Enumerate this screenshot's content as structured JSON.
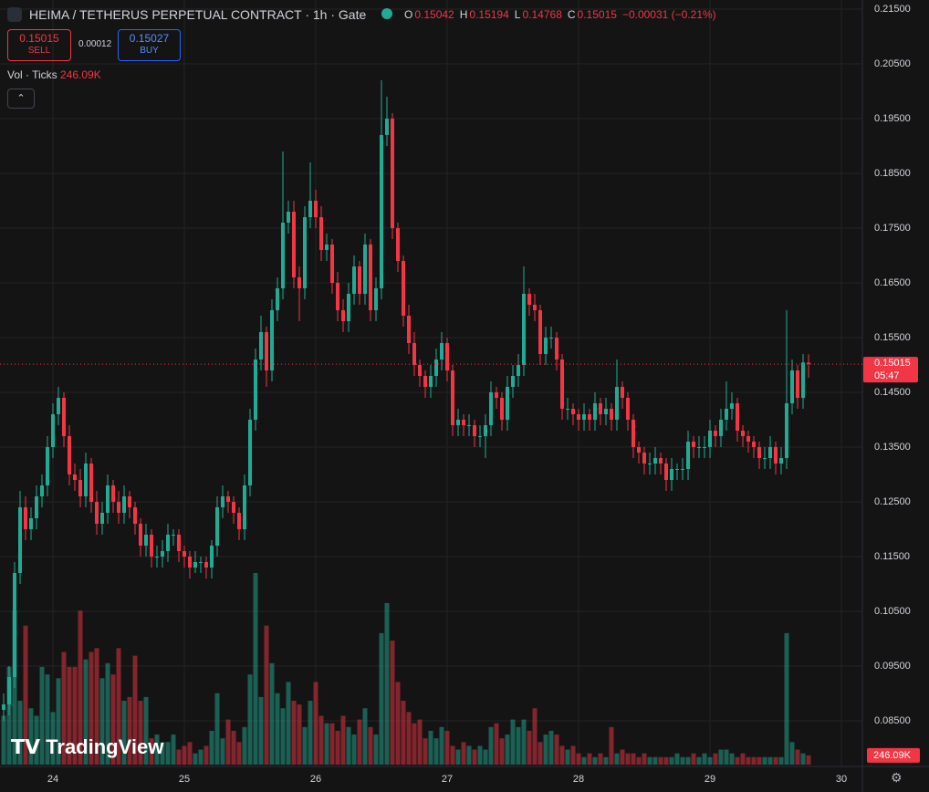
{
  "chart_data": {
    "type": "candlestick",
    "title": "HEIMA / TETHERUS PERPETUAL CONTRACT · 1h · Gate",
    "ohlc_labels": [
      "O",
      "H",
      "L",
      "C"
    ],
    "change_label": "−0.00031 (−0.21%)",
    "trade": {
      "sell_price": "0.15015",
      "sell_label": "SELL",
      "spread": "0.00012",
      "buy_price": "0.15027",
      "buy_label": "BUY"
    },
    "volume_title": "Vol · Ticks",
    "volume_label": "246.09K",
    "countdown": "05:47",
    "watermark": "TradingView",
    "up_color": "#22ab94",
    "down_color": "#f23645",
    "ylim": [
      0.07533,
      0.21667
    ],
    "yticks": [
      {
        "value": 0.215,
        "label": "0.21500"
      },
      {
        "value": 0.205,
        "label": "0.20500"
      },
      {
        "value": 0.195,
        "label": "0.19500"
      },
      {
        "value": 0.185,
        "label": "0.18500"
      },
      {
        "value": 0.175,
        "label": "0.17500"
      },
      {
        "value": 0.165,
        "label": "0.16500"
      },
      {
        "value": 0.155,
        "label": "0.15500"
      },
      {
        "value": 0.145,
        "label": "0.14500"
      },
      {
        "value": 0.135,
        "label": "0.13500"
      },
      {
        "value": 0.125,
        "label": "0.12500"
      },
      {
        "value": 0.115,
        "label": "0.11500"
      },
      {
        "value": 0.105,
        "label": "0.10500"
      },
      {
        "value": 0.095,
        "label": "0.09500"
      },
      {
        "value": 0.085,
        "label": "0.08500"
      }
    ],
    "xticks": [
      {
        "value": 9,
        "label": "24"
      },
      {
        "value": 33,
        "label": "25"
      },
      {
        "value": 57,
        "label": "26"
      },
      {
        "value": 81,
        "label": "27"
      },
      {
        "value": 105,
        "label": "28"
      },
      {
        "value": 129,
        "label": "29"
      },
      {
        "value": 153,
        "label": "30"
      }
    ],
    "grid": true,
    "open": [
      0.087,
      0.088,
      0.093,
      0.112,
      0.124,
      0.12,
      0.122,
      0.126,
      0.128,
      0.135,
      0.141,
      0.144,
      0.137,
      0.13,
      0.129,
      0.126,
      0.132,
      0.125,
      0.121,
      0.123,
      0.128,
      0.125,
      0.123,
      0.126,
      0.124,
      0.121,
      0.117,
      0.119,
      0.115,
      0.115,
      0.116,
      0.119,
      0.119,
      0.116,
      0.115,
      0.113,
      0.114,
      0.114,
      0.113,
      0.117,
      0.124,
      0.126,
      0.125,
      0.123,
      0.12,
      0.128,
      0.14,
      0.151,
      0.156,
      0.149,
      0.16,
      0.164,
      0.176,
      0.178,
      0.166,
      0.164,
      0.177,
      0.18,
      0.177,
      0.171,
      0.172,
      0.165,
      0.16,
      0.158,
      0.163,
      0.168,
      0.163,
      0.172,
      0.16,
      0.164,
      0.192,
      0.195,
      0.175,
      0.169,
      0.159,
      0.154,
      0.15,
      0.148,
      0.146,
      0.148,
      0.151,
      0.154,
      0.149,
      0.139,
      0.14,
      0.139,
      0.139,
      0.137,
      0.137,
      0.139,
      0.145,
      0.144,
      0.14,
      0.146,
      0.148,
      0.15,
      0.163,
      0.161,
      0.16,
      0.152,
      0.155,
      0.155,
      0.151,
      0.142,
      0.142,
      0.141,
      0.14,
      0.141,
      0.14,
      0.143,
      0.141,
      0.142,
      0.14,
      0.146,
      0.144,
      0.14,
      0.135,
      0.134,
      0.132,
      0.132,
      0.133,
      0.132,
      0.129,
      0.131,
      0.131,
      0.131,
      0.136,
      0.135,
      0.135,
      0.135,
      0.138,
      0.137,
      0.14,
      0.142,
      0.143,
      0.138,
      0.137,
      0.136,
      0.135,
      0.133,
      0.133,
      0.135,
      0.132,
      0.133,
      0.143,
      0.149,
      0.144,
      0.15042
    ],
    "high": [
      0.09,
      0.095,
      0.114,
      0.127,
      0.126,
      0.124,
      0.128,
      0.13,
      0.137,
      0.143,
      0.146,
      0.145,
      0.139,
      0.132,
      0.131,
      0.134,
      0.133,
      0.127,
      0.125,
      0.13,
      0.129,
      0.127,
      0.128,
      0.127,
      0.125,
      0.122,
      0.121,
      0.12,
      0.117,
      0.118,
      0.121,
      0.12,
      0.12,
      0.117,
      0.116,
      0.116,
      0.115,
      0.115,
      0.118,
      0.126,
      0.128,
      0.127,
      0.126,
      0.124,
      0.13,
      0.142,
      0.153,
      0.159,
      0.157,
      0.162,
      0.166,
      0.189,
      0.18,
      0.18,
      0.168,
      0.179,
      0.187,
      0.182,
      0.179,
      0.174,
      0.173,
      0.167,
      0.162,
      0.165,
      0.17,
      0.169,
      0.174,
      0.173,
      0.166,
      0.202,
      0.199,
      0.196,
      0.176,
      0.17,
      0.161,
      0.156,
      0.151,
      0.149,
      0.15,
      0.153,
      0.156,
      0.155,
      0.15,
      0.142,
      0.141,
      0.141,
      0.14,
      0.139,
      0.141,
      0.147,
      0.146,
      0.145,
      0.148,
      0.15,
      0.152,
      0.168,
      0.164,
      0.163,
      0.161,
      0.157,
      0.157,
      0.156,
      0.152,
      0.144,
      0.143,
      0.142,
      0.143,
      0.142,
      0.145,
      0.144,
      0.144,
      0.143,
      0.151,
      0.147,
      0.145,
      0.141,
      0.136,
      0.135,
      0.134,
      0.135,
      0.134,
      0.133,
      0.133,
      0.132,
      0.133,
      0.138,
      0.137,
      0.137,
      0.137,
      0.14,
      0.139,
      0.142,
      0.147,
      0.145,
      0.144,
      0.139,
      0.138,
      0.137,
      0.136,
      0.135,
      0.137,
      0.136,
      0.135,
      0.16,
      0.151,
      0.15,
      0.152,
      0.15194
    ],
    "low": [
      0.085,
      0.086,
      0.091,
      0.11,
      0.118,
      0.118,
      0.12,
      0.124,
      0.126,
      0.133,
      0.139,
      0.135,
      0.128,
      0.127,
      0.124,
      0.124,
      0.123,
      0.119,
      0.119,
      0.121,
      0.123,
      0.121,
      0.121,
      0.122,
      0.119,
      0.115,
      0.115,
      0.113,
      0.113,
      0.113,
      0.114,
      0.117,
      0.114,
      0.113,
      0.111,
      0.112,
      0.112,
      0.111,
      0.111,
      0.115,
      0.122,
      0.123,
      0.121,
      0.118,
      0.118,
      0.126,
      0.138,
      0.149,
      0.146,
      0.147,
      0.158,
      0.162,
      0.174,
      0.164,
      0.158,
      0.162,
      0.175,
      0.175,
      0.169,
      0.169,
      0.163,
      0.158,
      0.156,
      0.156,
      0.161,
      0.161,
      0.161,
      0.158,
      0.158,
      0.162,
      0.19,
      0.173,
      0.167,
      0.157,
      0.152,
      0.148,
      0.146,
      0.144,
      0.144,
      0.146,
      0.149,
      0.147,
      0.137,
      0.137,
      0.137,
      0.137,
      0.135,
      0.135,
      0.133,
      0.137,
      0.142,
      0.138,
      0.138,
      0.144,
      0.146,
      0.148,
      0.159,
      0.158,
      0.15,
      0.15,
      0.153,
      0.149,
      0.14,
      0.14,
      0.139,
      0.138,
      0.138,
      0.138,
      0.138,
      0.139,
      0.139,
      0.138,
      0.138,
      0.142,
      0.138,
      0.133,
      0.132,
      0.13,
      0.13,
      0.13,
      0.13,
      0.127,
      0.127,
      0.129,
      0.129,
      0.129,
      0.133,
      0.133,
      0.133,
      0.133,
      0.135,
      0.135,
      0.138,
      0.14,
      0.136,
      0.135,
      0.134,
      0.133,
      0.131,
      0.131,
      0.131,
      0.13,
      0.13,
      0.131,
      0.141,
      0.142,
      0.142,
      0.14768
    ],
    "close": [
      0.088,
      0.093,
      0.112,
      0.124,
      0.12,
      0.122,
      0.126,
      0.128,
      0.135,
      0.141,
      0.144,
      0.137,
      0.13,
      0.129,
      0.126,
      0.132,
      0.125,
      0.121,
      0.123,
      0.128,
      0.125,
      0.123,
      0.126,
      0.124,
      0.121,
      0.117,
      0.119,
      0.115,
      0.115,
      0.116,
      0.119,
      0.119,
      0.116,
      0.115,
      0.113,
      0.114,
      0.114,
      0.113,
      0.117,
      0.124,
      0.126,
      0.125,
      0.123,
      0.12,
      0.128,
      0.14,
      0.151,
      0.156,
      0.149,
      0.16,
      0.164,
      0.176,
      0.178,
      0.166,
      0.164,
      0.177,
      0.18,
      0.177,
      0.171,
      0.172,
      0.165,
      0.16,
      0.158,
      0.163,
      0.168,
      0.163,
      0.172,
      0.16,
      0.164,
      0.192,
      0.195,
      0.175,
      0.169,
      0.159,
      0.154,
      0.15,
      0.148,
      0.146,
      0.148,
      0.151,
      0.154,
      0.149,
      0.139,
      0.14,
      0.139,
      0.139,
      0.137,
      0.137,
      0.139,
      0.145,
      0.144,
      0.14,
      0.146,
      0.148,
      0.15,
      0.163,
      0.161,
      0.16,
      0.152,
      0.155,
      0.155,
      0.151,
      0.142,
      0.142,
      0.141,
      0.14,
      0.141,
      0.14,
      0.143,
      0.141,
      0.142,
      0.14,
      0.146,
      0.144,
      0.14,
      0.135,
      0.134,
      0.132,
      0.132,
      0.133,
      0.132,
      0.129,
      0.131,
      0.131,
      0.131,
      0.136,
      0.135,
      0.135,
      0.135,
      0.138,
      0.137,
      0.14,
      0.142,
      0.143,
      0.138,
      0.137,
      0.136,
      0.135,
      0.133,
      0.133,
      0.135,
      0.132,
      0.133,
      0.143,
      0.149,
      0.144,
      0.15046,
      0.15015
    ],
    "volume": [
      1300000,
      2600000,
      4100000,
      1700000,
      3700000,
      1500000,
      1300000,
      2600000,
      2400000,
      1400000,
      2300000,
      3000000,
      2600000,
      2600000,
      4100000,
      2800000,
      3000000,
      3100000,
      2300000,
      2700000,
      2400000,
      3100000,
      1700000,
      1800000,
      2900000,
      1700000,
      1800000,
      700000,
      800000,
      600000,
      600000,
      800000,
      400000,
      500000,
      600000,
      300000,
      400000,
      500000,
      900000,
      1900000,
      700000,
      1200000,
      900000,
      600000,
      1000000,
      2400000,
      5100000,
      1800000,
      3700000,
      2700000,
      1900000,
      1500000,
      2200000,
      1700000,
      1600000,
      1000000,
      1700000,
      2200000,
      1300000,
      1100000,
      1100000,
      900000,
      1300000,
      1000000,
      800000,
      1200000,
      1500000,
      1000000,
      800000,
      3500000,
      4300000,
      3300000,
      2200000,
      1700000,
      1400000,
      1100000,
      1200000,
      700000,
      900000,
      700000,
      1000000,
      900000,
      500000,
      400000,
      600000,
      500000,
      400000,
      500000,
      400000,
      1000000,
      1100000,
      700000,
      800000,
      1200000,
      1000000,
      1200000,
      900000,
      1500000,
      600000,
      800000,
      900000,
      800000,
      500000,
      400000,
      500000,
      300000,
      200000,
      300000,
      200000,
      300000,
      200000,
      1000000,
      300000,
      400000,
      300000,
      300000,
      200000,
      300000,
      200000,
      200000,
      200000,
      200000,
      200000,
      300000,
      200000,
      200000,
      300000,
      200000,
      300000,
      200000,
      300000,
      400000,
      400000,
      300000,
      200000,
      300000,
      200000,
      200000,
      200000,
      200000,
      200000,
      200000,
      200000,
      3500000,
      600000,
      400000,
      300000,
      246090
    ]
  }
}
